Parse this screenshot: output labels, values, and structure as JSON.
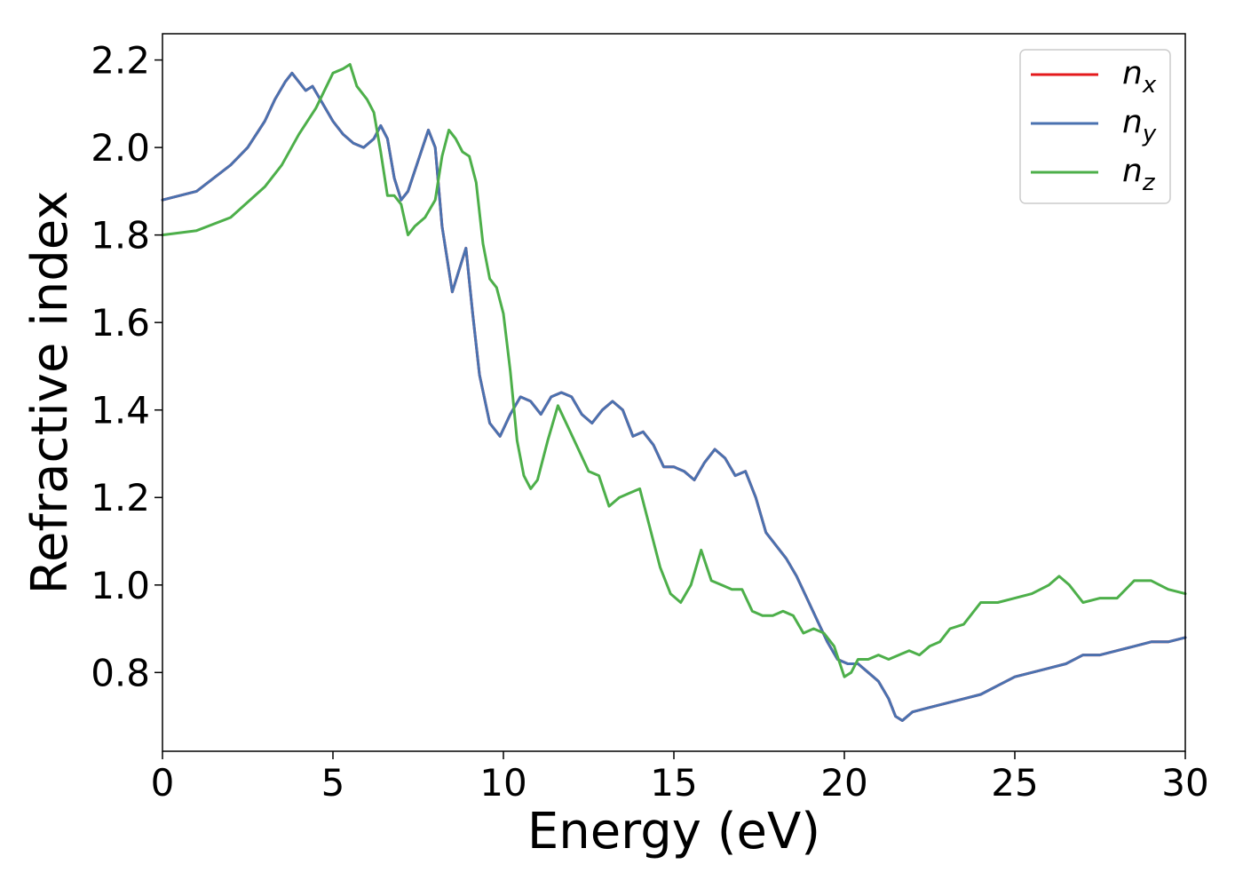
{
  "chart_data": {
    "type": "line",
    "title": "",
    "xlabel": "Energy (eV)",
    "ylabel": "Refractive index",
    "xlim": [
      0,
      30
    ],
    "ylim": [
      0.62,
      2.26
    ],
    "xticks": [
      0,
      5,
      10,
      15,
      20,
      25,
      30
    ],
    "yticks": [
      0.8,
      1.0,
      1.2,
      1.4,
      1.6,
      1.8,
      2.0,
      2.2
    ],
    "xtick_labels": [
      "0",
      "5",
      "10",
      "15",
      "20",
      "25",
      "30"
    ],
    "ytick_labels": [
      "0.8",
      "1.0",
      "1.2",
      "1.4",
      "1.6",
      "1.8",
      "2.0",
      "2.2"
    ],
    "grid": false,
    "legend_position": "top-right",
    "legend": [
      {
        "base": "n",
        "sub": "x"
      },
      {
        "base": "n",
        "sub": "y"
      },
      {
        "base": "n",
        "sub": "z"
      }
    ],
    "series": [
      {
        "name": "n_x",
        "color": "#e41a1c",
        "x": [
          0,
          1,
          2,
          2.5,
          3,
          3.3,
          3.6,
          3.8,
          4.0,
          4.2,
          4.4,
          4.7,
          5.0,
          5.3,
          5.6,
          5.9,
          6.2,
          6.4,
          6.6,
          6.8,
          7.0,
          7.2,
          7.5,
          7.8,
          8.0,
          8.2,
          8.5,
          8.7,
          8.9,
          9.1,
          9.3,
          9.6,
          9.9,
          10.2,
          10.5,
          10.8,
          11.1,
          11.4,
          11.7,
          12.0,
          12.3,
          12.6,
          12.9,
          13.2,
          13.5,
          13.8,
          14.1,
          14.4,
          14.7,
          15.0,
          15.3,
          15.6,
          15.9,
          16.2,
          16.5,
          16.8,
          17.1,
          17.4,
          17.7,
          18.0,
          18.3,
          18.6,
          18.9,
          19.2,
          19.5,
          19.8,
          20.1,
          20.4,
          20.7,
          21.0,
          21.3,
          21.5,
          21.7,
          22.0,
          22.5,
          23.0,
          23.5,
          24.0,
          24.5,
          25.0,
          25.5,
          26.0,
          26.5,
          27.0,
          27.5,
          28.0,
          28.5,
          29.0,
          29.5,
          30.0
        ],
        "y": [
          1.88,
          1.9,
          1.96,
          2.0,
          2.06,
          2.11,
          2.15,
          2.17,
          2.15,
          2.13,
          2.14,
          2.1,
          2.06,
          2.03,
          2.01,
          2.0,
          2.02,
          2.05,
          2.02,
          1.93,
          1.88,
          1.9,
          1.97,
          2.04,
          2.0,
          1.82,
          1.67,
          1.72,
          1.77,
          1.62,
          1.48,
          1.37,
          1.34,
          1.39,
          1.43,
          1.42,
          1.39,
          1.43,
          1.44,
          1.43,
          1.39,
          1.37,
          1.4,
          1.42,
          1.4,
          1.34,
          1.35,
          1.32,
          1.27,
          1.27,
          1.26,
          1.24,
          1.28,
          1.31,
          1.29,
          1.25,
          1.26,
          1.2,
          1.12,
          1.09,
          1.06,
          1.02,
          0.97,
          0.92,
          0.87,
          0.83,
          0.82,
          0.82,
          0.8,
          0.78,
          0.74,
          0.7,
          0.69,
          0.71,
          0.72,
          0.73,
          0.74,
          0.75,
          0.77,
          0.79,
          0.8,
          0.81,
          0.82,
          0.84,
          0.84,
          0.85,
          0.86,
          0.87,
          0.87,
          0.88
        ]
      },
      {
        "name": "n_y",
        "color": "#4a72b0",
        "x": [
          0,
          1,
          2,
          2.5,
          3,
          3.3,
          3.6,
          3.8,
          4.0,
          4.2,
          4.4,
          4.7,
          5.0,
          5.3,
          5.6,
          5.9,
          6.2,
          6.4,
          6.6,
          6.8,
          7.0,
          7.2,
          7.5,
          7.8,
          8.0,
          8.2,
          8.5,
          8.7,
          8.9,
          9.1,
          9.3,
          9.6,
          9.9,
          10.2,
          10.5,
          10.8,
          11.1,
          11.4,
          11.7,
          12.0,
          12.3,
          12.6,
          12.9,
          13.2,
          13.5,
          13.8,
          14.1,
          14.4,
          14.7,
          15.0,
          15.3,
          15.6,
          15.9,
          16.2,
          16.5,
          16.8,
          17.1,
          17.4,
          17.7,
          18.0,
          18.3,
          18.6,
          18.9,
          19.2,
          19.5,
          19.8,
          20.1,
          20.4,
          20.7,
          21.0,
          21.3,
          21.5,
          21.7,
          22.0,
          22.5,
          23.0,
          23.5,
          24.0,
          24.5,
          25.0,
          25.5,
          26.0,
          26.5,
          27.0,
          27.5,
          28.0,
          28.5,
          29.0,
          29.5,
          30.0
        ],
        "y": [
          1.88,
          1.9,
          1.96,
          2.0,
          2.06,
          2.11,
          2.15,
          2.17,
          2.15,
          2.13,
          2.14,
          2.1,
          2.06,
          2.03,
          2.01,
          2.0,
          2.02,
          2.05,
          2.02,
          1.93,
          1.88,
          1.9,
          1.97,
          2.04,
          2.0,
          1.82,
          1.67,
          1.72,
          1.77,
          1.62,
          1.48,
          1.37,
          1.34,
          1.39,
          1.43,
          1.42,
          1.39,
          1.43,
          1.44,
          1.43,
          1.39,
          1.37,
          1.4,
          1.42,
          1.4,
          1.34,
          1.35,
          1.32,
          1.27,
          1.27,
          1.26,
          1.24,
          1.28,
          1.31,
          1.29,
          1.25,
          1.26,
          1.2,
          1.12,
          1.09,
          1.06,
          1.02,
          0.97,
          0.92,
          0.87,
          0.83,
          0.82,
          0.82,
          0.8,
          0.78,
          0.74,
          0.7,
          0.69,
          0.71,
          0.72,
          0.73,
          0.74,
          0.75,
          0.77,
          0.79,
          0.8,
          0.81,
          0.82,
          0.84,
          0.84,
          0.85,
          0.86,
          0.87,
          0.87,
          0.88
        ]
      },
      {
        "name": "n_z",
        "color": "#4daf4a",
        "x": [
          0,
          1,
          2,
          3,
          3.5,
          4.0,
          4.5,
          5.0,
          5.3,
          5.5,
          5.7,
          6.0,
          6.2,
          6.4,
          6.6,
          6.8,
          7.0,
          7.2,
          7.4,
          7.7,
          8.0,
          8.2,
          8.4,
          8.6,
          8.8,
          9.0,
          9.2,
          9.4,
          9.6,
          9.8,
          10.0,
          10.2,
          10.4,
          10.6,
          10.8,
          11.0,
          11.3,
          11.6,
          11.9,
          12.2,
          12.5,
          12.8,
          13.1,
          13.4,
          13.7,
          14.0,
          14.3,
          14.6,
          14.9,
          15.2,
          15.5,
          15.8,
          16.1,
          16.4,
          16.7,
          17.0,
          17.3,
          17.6,
          17.9,
          18.2,
          18.5,
          18.8,
          19.1,
          19.4,
          19.7,
          20.0,
          20.2,
          20.4,
          20.7,
          21.0,
          21.3,
          21.6,
          21.9,
          22.2,
          22.5,
          22.8,
          23.1,
          23.5,
          24.0,
          24.5,
          25.0,
          25.5,
          26.0,
          26.3,
          26.6,
          27.0,
          27.5,
          28.0,
          28.5,
          29.0,
          29.5,
          30.0
        ],
        "y": [
          1.8,
          1.81,
          1.84,
          1.91,
          1.96,
          2.03,
          2.09,
          2.17,
          2.18,
          2.19,
          2.14,
          2.11,
          2.08,
          1.99,
          1.89,
          1.89,
          1.87,
          1.8,
          1.82,
          1.84,
          1.88,
          1.98,
          2.04,
          2.02,
          1.99,
          1.98,
          1.92,
          1.78,
          1.7,
          1.68,
          1.62,
          1.49,
          1.33,
          1.25,
          1.22,
          1.24,
          1.33,
          1.41,
          1.36,
          1.31,
          1.26,
          1.25,
          1.18,
          1.2,
          1.21,
          1.22,
          1.13,
          1.04,
          0.98,
          0.96,
          1.0,
          1.08,
          1.01,
          1.0,
          0.99,
          0.99,
          0.94,
          0.93,
          0.93,
          0.94,
          0.93,
          0.89,
          0.9,
          0.89,
          0.86,
          0.79,
          0.8,
          0.83,
          0.83,
          0.84,
          0.83,
          0.84,
          0.85,
          0.84,
          0.86,
          0.87,
          0.9,
          0.91,
          0.96,
          0.96,
          0.97,
          0.98,
          1.0,
          1.02,
          1.0,
          0.96,
          0.97,
          0.97,
          1.01,
          1.01,
          0.99,
          0.98
        ]
      }
    ]
  }
}
